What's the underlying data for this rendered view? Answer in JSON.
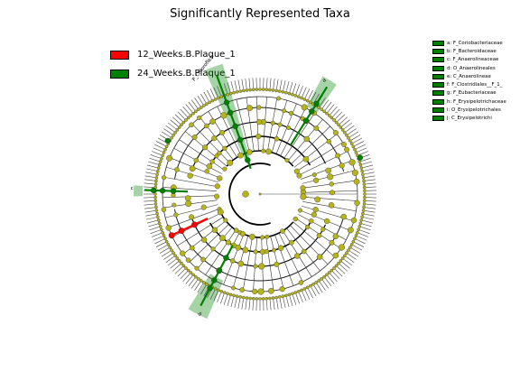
{
  "chart_data": {
    "type": "cladogram",
    "title": "Significantly Represented Taxa",
    "groups": [
      {
        "name": "12_Weeks.B.Plaque_1",
        "color": "#ff0000"
      },
      {
        "name": "24_Weeks.B.Plaque_1",
        "color": "#008000"
      }
    ],
    "node_color": "#b5b51a",
    "taxa": [
      {
        "label": "a: F_Coriobacteriaceae",
        "group": "24_Weeks.B.Plaque_1"
      },
      {
        "label": "b: F_Bacteroidaceae",
        "group": "24_Weeks.B.Plaque_1"
      },
      {
        "label": "c: F_Anaerolineaceae",
        "group": "24_Weeks.B.Plaque_1"
      },
      {
        "label": "d: O_Anaerolineales",
        "group": "24_Weeks.B.Plaque_1"
      },
      {
        "label": "e: C_Anaerolineae",
        "group": "24_Weeks.B.Plaque_1"
      },
      {
        "label": "f: F_Clostridiales__F_1_",
        "group": "24_Weeks.B.Plaque_1"
      },
      {
        "label": "g: F_Eubacteriaceae",
        "group": "24_Weeks.B.Plaque_1"
      },
      {
        "label": "h: F_Erysipelotrichaceae",
        "group": "24_Weeks.B.Plaque_1"
      },
      {
        "label": "i: O_Erysipelotrichales",
        "group": "24_Weeks.B.Plaque_1"
      },
      {
        "label": "j: C_Erysipelotrichi",
        "group": "24_Weeks.B.Plaque_1"
      }
    ],
    "clade_labels": [
      {
        "text": "P_Chloroflexi",
        "group": "24_Weeks.B.Plaque_1"
      },
      {
        "text": "a",
        "group": "24_Weeks.B.Plaque_1"
      },
      {
        "text": "b",
        "group": "24_Weeks.B.Plaque_1"
      },
      {
        "text": "c",
        "group": "24_Weeks.B.Plaque_1"
      }
    ]
  }
}
